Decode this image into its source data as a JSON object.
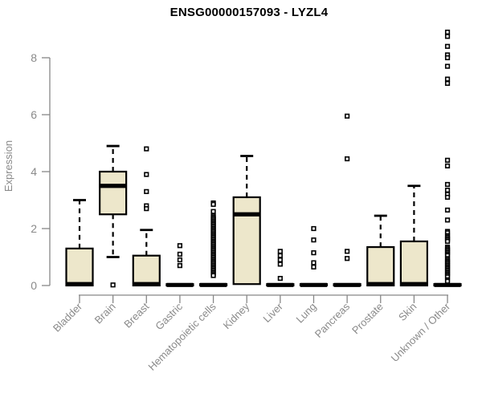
{
  "chart_data": {
    "type": "boxplot",
    "title": "ENSG00000157093 - LYZL4",
    "ylabel": "Expression",
    "xlabel": "",
    "ylim": [
      -0.1,
      9.0
    ],
    "yticks": [
      0,
      2,
      4,
      6,
      8
    ],
    "grid": false,
    "legend": "none",
    "box_fill": "#EDE7CB",
    "box_stroke": "#000000",
    "axis_color": "#878787",
    "label_color": "#8a8a8a",
    "title_color": "#000000",
    "categories": [
      "Bladder",
      "Brain",
      "Breast",
      "Gastric",
      "Hematopoietic cells",
      "Kidney",
      "Liver",
      "Lung",
      "Pancreas",
      "Prostate",
      "Skin",
      "Unknown / Other"
    ],
    "series": [
      {
        "category": "Bladder",
        "q1": 0,
        "median": 0.05,
        "q3": 1.3,
        "whisker_low": 0,
        "whisker_high": 3.0,
        "outliers": []
      },
      {
        "category": "Brain",
        "q1": 2.5,
        "median": 3.5,
        "q3": 4.0,
        "whisker_low": 1.0,
        "whisker_high": 4.9,
        "outliers": [
          0.02
        ]
      },
      {
        "category": "Breast",
        "q1": 0,
        "median": 0.05,
        "q3": 1.05,
        "whisker_low": 0,
        "whisker_high": 1.95,
        "outliers": [
          4.8,
          3.9,
          3.3,
          2.8,
          2.7
        ]
      },
      {
        "category": "Gastric",
        "q1": 0,
        "median": 0.02,
        "q3": 0.05,
        "whisker_low": 0,
        "whisker_high": 0.05,
        "outliers": [
          1.4,
          1.1,
          0.9,
          0.7
        ]
      },
      {
        "category": "Hematopoietic cells",
        "q1": 0,
        "median": 0.02,
        "q3": 0.05,
        "whisker_low": 0,
        "whisker_high": 0.05,
        "outliers": [
          2.9,
          2.85,
          2.6,
          2.45,
          2.4,
          2.35,
          2.3,
          2.25,
          2.2,
          2.15,
          2.1,
          2.05,
          2.0,
          1.95,
          1.9,
          1.85,
          1.8,
          1.75,
          1.7,
          1.65,
          1.6,
          1.55,
          1.5,
          1.45,
          1.4,
          1.35,
          1.3,
          1.25,
          1.2,
          1.15,
          1.1,
          1.05,
          1.0,
          0.95,
          0.9,
          0.85,
          0.8,
          0.75,
          0.7,
          0.65,
          0.6,
          0.55,
          0.5,
          0.45,
          0.4,
          0.35
        ]
      },
      {
        "category": "Kidney",
        "q1": 0.05,
        "median": 2.5,
        "q3": 3.1,
        "whisker_low": 0.05,
        "whisker_high": 4.55,
        "outliers": []
      },
      {
        "category": "Liver",
        "q1": 0,
        "median": 0.02,
        "q3": 0.05,
        "whisker_low": 0,
        "whisker_high": 0.05,
        "outliers": [
          1.2,
          1.05,
          0.9,
          0.75,
          0.25
        ]
      },
      {
        "category": "Lung",
        "q1": 0,
        "median": 0.02,
        "q3": 0.05,
        "whisker_low": 0,
        "whisker_high": 0.05,
        "outliers": [
          2.0,
          1.6,
          1.15,
          0.8,
          0.65
        ]
      },
      {
        "category": "Pancreas",
        "q1": 0,
        "median": 0.02,
        "q3": 0.05,
        "whisker_low": 0,
        "whisker_high": 0.05,
        "outliers": [
          5.95,
          4.45,
          1.2,
          0.95
        ]
      },
      {
        "category": "Prostate",
        "q1": 0,
        "median": 0.05,
        "q3": 1.35,
        "whisker_low": 0,
        "whisker_high": 2.45,
        "outliers": []
      },
      {
        "category": "Skin",
        "q1": 0,
        "median": 0.05,
        "q3": 1.55,
        "whisker_low": 0,
        "whisker_high": 3.5,
        "outliers": []
      },
      {
        "category": "Unknown / Other",
        "q1": 0,
        "median": 0.02,
        "q3": 0.05,
        "whisker_low": 0,
        "whisker_high": 0.05,
        "outliers": [
          8.9,
          8.75,
          8.4,
          8.1,
          8.0,
          7.7,
          7.25,
          7.1,
          4.4,
          4.2,
          3.55,
          3.35,
          3.2,
          3.1,
          2.65,
          2.3,
          1.9,
          1.85,
          1.75,
          1.7,
          1.65,
          1.6,
          1.55,
          1.35,
          1.3,
          1.25,
          1.2,
          1.15,
          1.1,
          1.05,
          0.95,
          0.9,
          0.85,
          0.8,
          0.75,
          0.7,
          0.65,
          0.6,
          0.55,
          0.5,
          0.45,
          0.4,
          0.35,
          0.3,
          0.2,
          0.15
        ]
      }
    ]
  }
}
